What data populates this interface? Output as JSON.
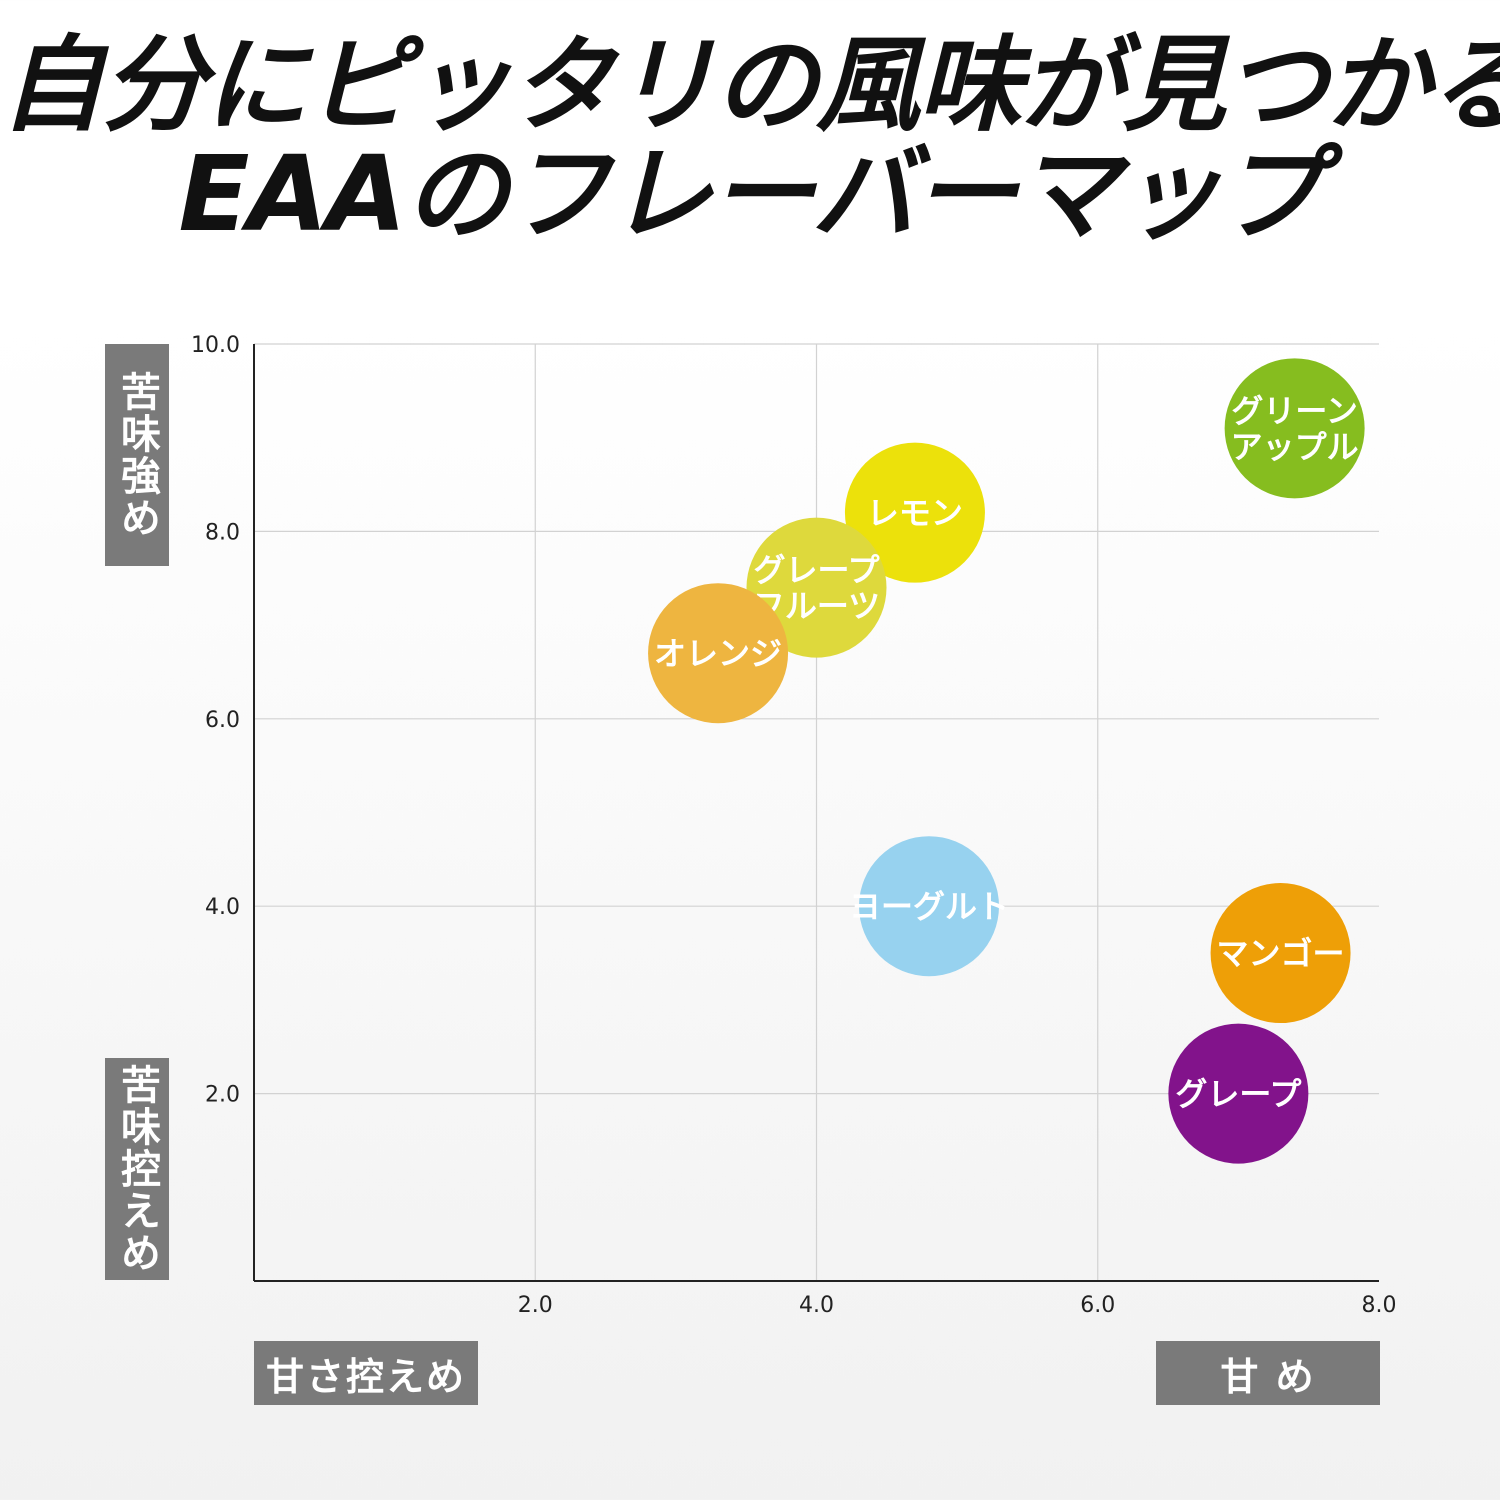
{
  "title": {
    "line1": "自分にピッタリの風味が見つかる!",
    "line2": "EAAのフレーバーマップ"
  },
  "axis_labels": {
    "y_top": "苦味強め",
    "y_bottom": "苦味控えめ",
    "x_left": "甘さ控えめ",
    "x_right": "甘 め"
  },
  "chart_data": {
    "type": "scatter",
    "xlim": [
      0,
      8
    ],
    "ylim": [
      0,
      10
    ],
    "x_ticks": [
      {
        "value": 2,
        "label": "2.0"
      },
      {
        "value": 4,
        "label": "4.0"
      },
      {
        "value": 6,
        "label": "6.0"
      },
      {
        "value": 8,
        "label": "8.0"
      }
    ],
    "y_ticks": [
      {
        "value": 2,
        "label": "2.0"
      },
      {
        "value": 4,
        "label": "4.0"
      },
      {
        "value": 6,
        "label": "6.0"
      },
      {
        "value": 8,
        "label": "8.0"
      },
      {
        "value": 10,
        "label": "10.0"
      }
    ],
    "grid": true,
    "points": [
      {
        "label": [
          "グリーン",
          "アップル"
        ],
        "x": 7.4,
        "y": 9.1,
        "color": "#86bd1f"
      },
      {
        "label": [
          "レモン"
        ],
        "x": 4.7,
        "y": 8.2,
        "color": "#ece10b"
      },
      {
        "label": [
          "グレープ",
          "フルーツ"
        ],
        "x": 4.0,
        "y": 7.4,
        "color": "#ded93c"
      },
      {
        "label": [
          "オレンジ"
        ],
        "x": 3.3,
        "y": 6.7,
        "color": "#eeb540"
      },
      {
        "label": [
          "ヨーグルト"
        ],
        "x": 4.8,
        "y": 4.0,
        "color": "#97d2ef"
      },
      {
        "label": [
          "マンゴー"
        ],
        "x": 7.3,
        "y": 3.5,
        "color": "#ee9f07"
      },
      {
        "label": [
          "グレープ"
        ],
        "x": 7.0,
        "y": 2.0,
        "color": "#82138b"
      }
    ]
  },
  "colors": {
    "axis": "#222222",
    "grid": "#d2d2d2",
    "badge": "#7a7a7a",
    "title": "#111111"
  }
}
